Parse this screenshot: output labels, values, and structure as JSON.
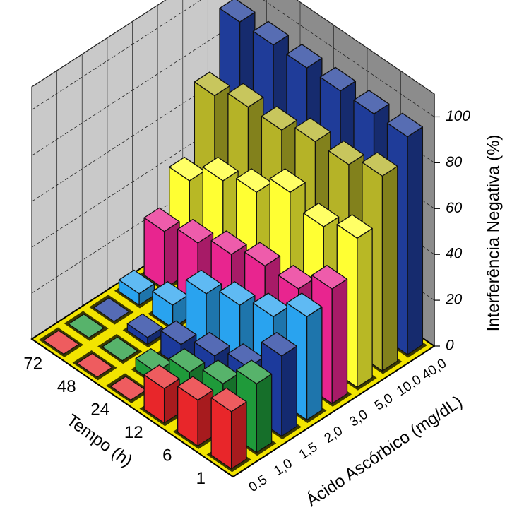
{
  "chart_data": {
    "type": "bar3d",
    "x_label": "Tempo (h)",
    "y_label": "Ácido Ascórbico (mg/dL)",
    "z_label": "Interferência Negativa (%)",
    "categories": [
      "1",
      "6",
      "12",
      "24",
      "48",
      "72"
    ],
    "series": [
      {
        "name": "0,5",
        "color": "#e8262a",
        "values": [
          25,
          20,
          15,
          0,
          0,
          0
        ]
      },
      {
        "name": "1,0",
        "color": "#1f9a3a",
        "values": [
          30,
          20,
          15,
          5,
          0,
          0
        ]
      },
      {
        "name": "1,5",
        "color": "#1c3a9c",
        "values": [
          35,
          20,
          15,
          10,
          3,
          0
        ]
      },
      {
        "name": "2,0",
        "color": "#29a3ef",
        "values": [
          45,
          35,
          30,
          25,
          10,
          5
        ]
      },
      {
        "name": "3,0",
        "color": "#e8258f",
        "values": [
          50,
          40,
          40,
          35,
          30,
          25
        ]
      },
      {
        "name": "5,0",
        "color": "#ffff33",
        "values": [
          65,
          60,
          65,
          55,
          50,
          40
        ]
      },
      {
        "name": "10,0",
        "color": "#b5b327",
        "values": [
          85,
          80,
          80,
          75,
          75,
          70
        ]
      },
      {
        "name": "40,0",
        "color": "#1f3c99",
        "values": [
          95,
          95,
          95,
          95,
          95,
          95
        ]
      }
    ],
    "zlim": [
      0,
      110
    ],
    "zticks": [
      0,
      20,
      40,
      60,
      80,
      100
    ],
    "grid": true
  }
}
